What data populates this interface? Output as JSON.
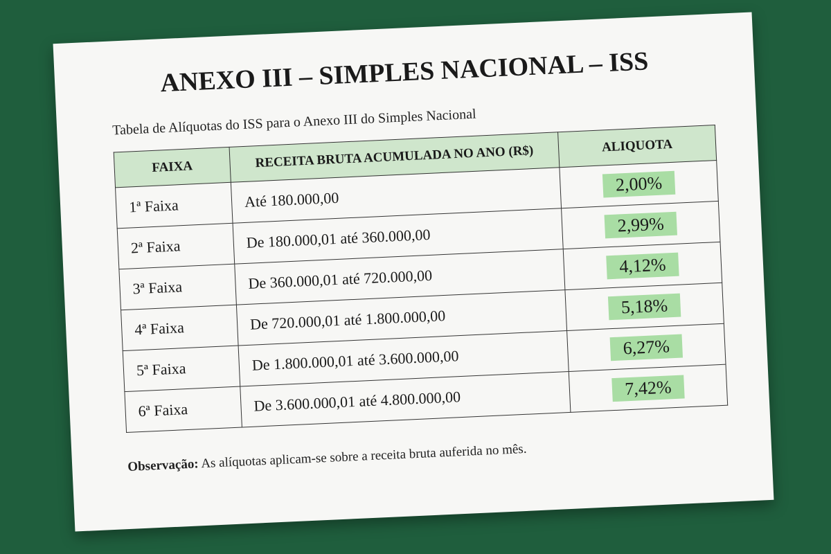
{
  "document": {
    "title": "ANEXO III – SIMPLES NACIONAL – ISS",
    "subtitle": "Tabela de Alíquotas do ISS para o Anexo III do Simples Nacional",
    "table": {
      "headers": [
        "FAIXA",
        "RECEITA BRUTA ACUMULADA NO ANO (R$)",
        "ALIQUOTA"
      ],
      "rows": [
        [
          "1ª Faixa",
          "Até 180.000,00",
          "2,00%"
        ],
        [
          "2ª Faixa",
          "De 180.000,01 até 360.000,00",
          "2,99%"
        ],
        [
          "3ª Faixa",
          "De 360.000,01 até 720.000,00",
          "4,12%"
        ],
        [
          "4ª Faixa",
          "De 720.000,01 até 1.800.000,00",
          "5,18%"
        ],
        [
          "5ª Faixa",
          "De 1.800.000,01 até 3.600.000,00",
          "6,27%"
        ],
        [
          "6ª Faixa",
          "De 3.600.000,01 até 4.800.000,00",
          "7,42%"
        ]
      ]
    },
    "note": {
      "label": "Observação:",
      "text": "As alíquotas aplicam-se sobre a receita bruta auferida no mês."
    }
  }
}
